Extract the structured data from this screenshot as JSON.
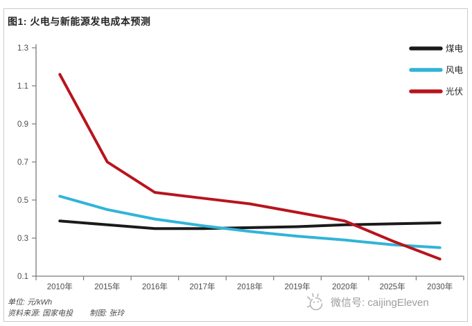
{
  "title": "图1: 火电与新能源发电成本预测",
  "footer": {
    "unit_label": "单位: 元/kWh",
    "source_label": "资料来源: 国家电投",
    "maker_label": "制图: 张玲"
  },
  "watermark": {
    "icon": "caijing-logo-icon",
    "text": "微信号: caijingEleven"
  },
  "colors": {
    "coal": "#1a1a1a",
    "wind": "#31b4d8",
    "solar": "#b8141d",
    "axis": "#7a7a7a",
    "tick_text": "#4d4d4d",
    "legend_text": "#262626",
    "frame_border": "#c9c9c9",
    "watermark_gray": "#9c9c9c"
  },
  "chart_data": {
    "type": "line",
    "title": "图1: 火电与新能源发电成本预测",
    "xlabel": "",
    "ylabel": "",
    "unit": "元/kWh",
    "categories": [
      "2010年",
      "2015年",
      "2016年",
      "2017年",
      "2018年",
      "2019年",
      "2020年",
      "2025年",
      "2030年"
    ],
    "series": [
      {
        "key": "coal",
        "name": "煤电",
        "color": "#1a1a1a",
        "values": [
          0.39,
          0.37,
          0.35,
          0.35,
          0.355,
          0.36,
          0.37,
          0.375,
          0.38
        ]
      },
      {
        "key": "wind",
        "name": "风电",
        "color": "#31b4d8",
        "values": [
          0.52,
          0.45,
          0.4,
          0.365,
          0.335,
          0.31,
          0.29,
          0.265,
          0.25
        ]
      },
      {
        "key": "solar",
        "name": "光伏",
        "color": "#b8141d",
        "values": [
          1.16,
          0.7,
          0.54,
          0.51,
          0.48,
          0.435,
          0.39,
          0.285,
          0.19
        ]
      }
    ],
    "y_ticks": [
      0.1,
      0.3,
      0.5,
      0.7,
      0.9,
      1.1,
      1.3
    ],
    "ylim": [
      0.1,
      1.3
    ],
    "grid": false,
    "legend_position": "top-right"
  }
}
